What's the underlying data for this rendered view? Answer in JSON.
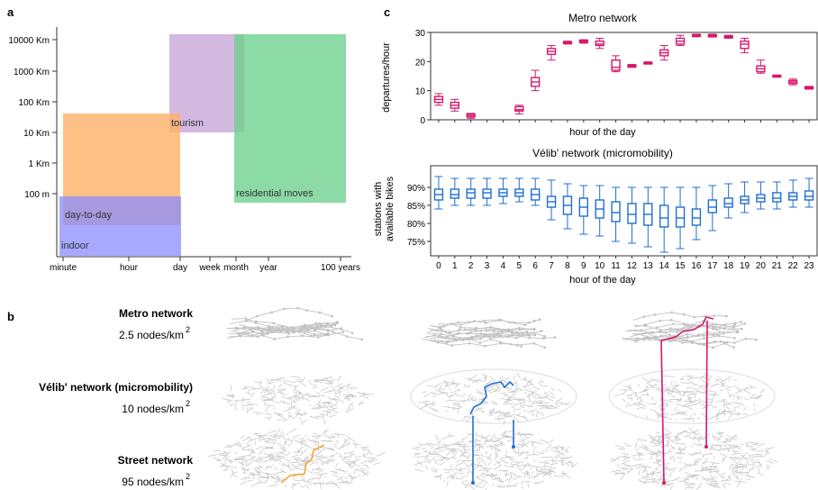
{
  "panels": {
    "a": "a",
    "b": "b",
    "c": "c"
  },
  "panel_a": {
    "y_ticks": [
      "10000 Km",
      "1000 Km",
      "100 Km",
      "10 Km",
      "1 Km",
      "100 m"
    ],
    "x_ticks": [
      "minute",
      "hour",
      "day",
      "week",
      "month",
      "year",
      "100 years"
    ],
    "regions": [
      {
        "name": "tourism",
        "color": "#c9a8d9"
      },
      {
        "name": "residential moves",
        "color": "#6fd18e"
      },
      {
        "name": "day-to-day",
        "color": "#ffb066"
      },
      {
        "name": "indoor",
        "color": "#8a8cff"
      }
    ]
  },
  "panel_b": {
    "networks": [
      {
        "name": "Metro network",
        "density": "2.5 nodes/km",
        "exp": "2"
      },
      {
        "name": "Vélib' network (micromobility)",
        "density": "10 nodes/km",
        "exp": "2"
      },
      {
        "name": "Street network",
        "density": "95 nodes/km",
        "exp": "2"
      }
    ],
    "colors": {
      "metro": "#d6186a",
      "velib": "#1f6fd1",
      "street": "#f0a830",
      "grid": "#c8c8c8"
    }
  },
  "chart_data": [
    {
      "type": "box",
      "title": "Metro network",
      "xlabel": "hour of the day",
      "ylabel": "departures/hour",
      "ylim": [
        0,
        30
      ],
      "yticks": [
        0,
        10,
        20,
        30
      ],
      "color": "#d6186a",
      "hours": [
        0,
        1,
        2,
        5,
        6,
        7,
        8,
        9,
        10,
        11,
        12,
        13,
        14,
        15,
        16,
        17,
        18,
        19,
        20,
        21,
        22,
        23
      ],
      "median": [
        7,
        5,
        1.5,
        3.5,
        13,
        23.5,
        26.5,
        27,
        26,
        18,
        18.5,
        19.5,
        23,
        27,
        29,
        29,
        28.5,
        26,
        17.5,
        15,
        13,
        11
      ],
      "q1": [
        6,
        4,
        1,
        3,
        11.5,
        22.5,
        26.2,
        26.6,
        25.5,
        17,
        18.2,
        19.3,
        22,
        26,
        28.7,
        28.6,
        28.2,
        24.5,
        16.5,
        14.8,
        12.5,
        10.7
      ],
      "q3": [
        8,
        6,
        2,
        4.5,
        14.5,
        24.5,
        26.8,
        27.3,
        27,
        20.5,
        18.8,
        19.7,
        24,
        28,
        29.2,
        29.2,
        28.8,
        27,
        18.5,
        15.2,
        13.5,
        11.3
      ],
      "min": [
        5,
        3,
        0.5,
        2,
        10,
        20.5,
        26,
        26.3,
        24.5,
        16.5,
        18,
        19.1,
        20.5,
        25.5,
        28.5,
        28.4,
        28,
        23,
        16,
        14.6,
        12,
        10.5
      ],
      "max": [
        9,
        7,
        2.2,
        5,
        17,
        25.5,
        27,
        27.5,
        28,
        22,
        19,
        19.9,
        25.5,
        29,
        29.4,
        29.4,
        29,
        28,
        20.5,
        15.4,
        14,
        11.5
      ]
    },
    {
      "type": "box",
      "title": "Vélib' network (micromobility)",
      "xlabel": "hour of the day",
      "ylabel": "stations with\navailable bikes",
      "ylim": [
        71,
        96
      ],
      "yticks_labels": [
        "75%",
        "80%",
        "85%",
        "90%"
      ],
      "yticks": [
        75,
        80,
        85,
        90
      ],
      "color": "#1f6fd1",
      "hours": [
        0,
        1,
        2,
        3,
        4,
        5,
        6,
        7,
        8,
        9,
        10,
        11,
        12,
        13,
        14,
        15,
        16,
        17,
        18,
        19,
        20,
        21,
        22,
        23
      ],
      "median": [
        88,
        88,
        88.5,
        88.5,
        88.5,
        88.5,
        88,
        86,
        85,
        84.5,
        84,
        83,
        82.5,
        82.5,
        81.5,
        81.5,
        81.5,
        84.5,
        85.5,
        86.5,
        87,
        87,
        87.5,
        87.5
      ],
      "q1": [
        86.5,
        87,
        87,
        87,
        87.5,
        87.5,
        86.5,
        84.5,
        82.5,
        82,
        81.5,
        80.5,
        80,
        79.5,
        79,
        79,
        79.5,
        83,
        84.5,
        85.5,
        86,
        86,
        86.5,
        86.5
      ],
      "q3": [
        89.5,
        89.5,
        89.5,
        89.5,
        89.5,
        89.5,
        89.5,
        87.5,
        87.5,
        87,
        86.5,
        86,
        85.5,
        85.5,
        85,
        84.5,
        84,
        86.5,
        87,
        87.5,
        88,
        88.5,
        88.5,
        89
      ],
      "min": [
        84,
        85,
        85,
        85,
        85.5,
        86,
        85,
        81,
        78.5,
        77,
        76.5,
        75,
        74.5,
        73.5,
        72,
        73,
        75.5,
        78,
        81.5,
        83,
        84,
        84,
        84.5,
        84.5
      ],
      "max": [
        93,
        92.5,
        92.5,
        92.5,
        92.5,
        92.5,
        92.5,
        92,
        91,
        90.5,
        90.5,
        90,
        90,
        90,
        90,
        90,
        90,
        90.5,
        91,
        91.5,
        91.5,
        91.5,
        92,
        92.5
      ]
    }
  ]
}
